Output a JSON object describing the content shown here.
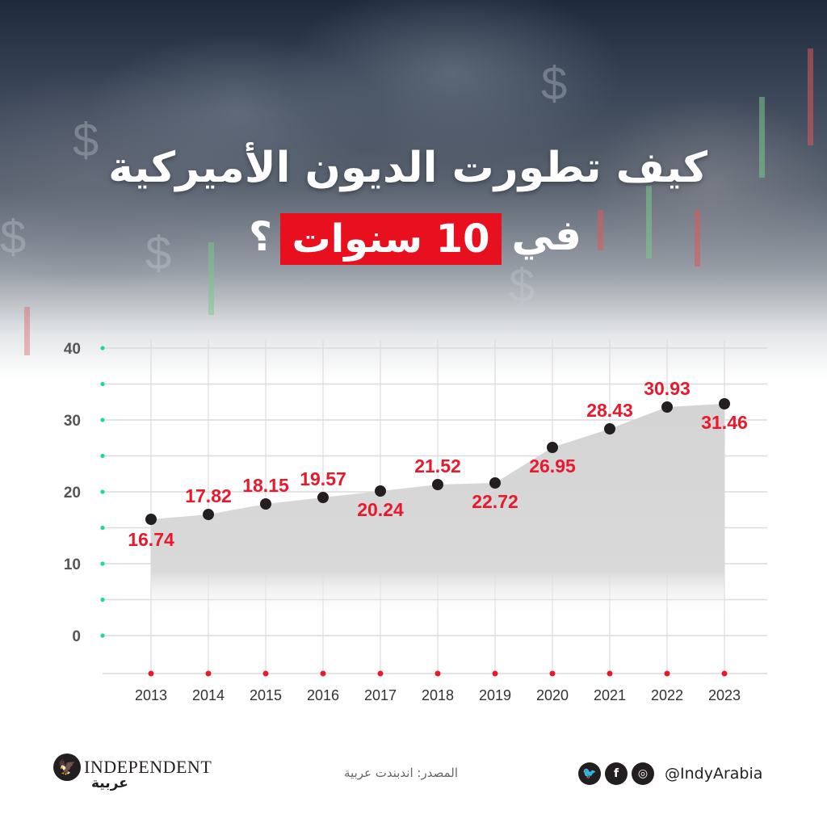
{
  "header": {
    "title_line1": "كيف تطورت الديون الأميركية",
    "title_line2_prefix": "في",
    "title_line2_highlight": "10 سنوات",
    "title_line2_suffix": "؟",
    "highlight_color": "#e8101f"
  },
  "footer": {
    "brand": "INDEPENDENT",
    "brand_arabic": "عربية",
    "source": "المصدر: اندبندت عربية",
    "handle": "@IndyArabia",
    "social_icons": [
      "twitter-icon",
      "facebook-icon",
      "instagram-icon"
    ]
  },
  "chart_data": {
    "type": "area",
    "title": "كيف تطورت الديون الأميركية في 10 سنوات؟",
    "xlabel": "",
    "ylabel": "",
    "categories": [
      "2013",
      "2014",
      "2015",
      "2016",
      "2017",
      "2018",
      "2019",
      "2020",
      "2021",
      "2022",
      "2023"
    ],
    "values": [
      16.74,
      17.82,
      18.15,
      19.57,
      20.24,
      21.52,
      22.72,
      26.95,
      28.43,
      30.93,
      31.46
    ],
    "y_ticks": [
      0,
      10,
      20,
      30,
      40
    ],
    "ylim": [
      0,
      40
    ],
    "grid": true,
    "legend": null,
    "colors": {
      "labels": "#e8192c",
      "points": "#231f20",
      "area": "#d6d6d6",
      "y_dots": "#1dd89a",
      "x_dots": "#e8192c",
      "axis_text": "#555555"
    }
  }
}
